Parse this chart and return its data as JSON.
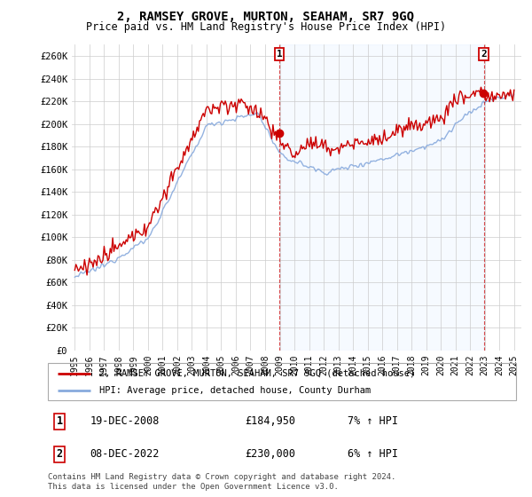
{
  "title": "2, RAMSEY GROVE, MURTON, SEAHAM, SR7 9GQ",
  "subtitle": "Price paid vs. HM Land Registry's House Price Index (HPI)",
  "legend_line1": "2, RAMSEY GROVE, MURTON, SEAHAM, SR7 9GQ (detached house)",
  "legend_line2": "HPI: Average price, detached house, County Durham",
  "transaction1_date": "19-DEC-2008",
  "transaction1_price": "£184,950",
  "transaction1_hpi": "7% ↑ HPI",
  "transaction2_date": "08-DEC-2022",
  "transaction2_price": "£230,000",
  "transaction2_hpi": "6% ↑ HPI",
  "footnote": "Contains HM Land Registry data © Crown copyright and database right 2024.\nThis data is licensed under the Open Government Licence v3.0.",
  "ylim": [
    0,
    270000
  ],
  "yticks": [
    0,
    20000,
    40000,
    60000,
    80000,
    100000,
    120000,
    140000,
    160000,
    180000,
    200000,
    220000,
    240000,
    260000
  ],
  "ytick_labels": [
    "£0",
    "£20K",
    "£40K",
    "£60K",
    "£80K",
    "£100K",
    "£120K",
    "£140K",
    "£160K",
    "£180K",
    "£200K",
    "£220K",
    "£240K",
    "£260K"
  ],
  "red_color": "#cc0000",
  "blue_color": "#88aadd",
  "blue_fill": "#ddeeff",
  "bg_color": "#ffffff",
  "grid_color": "#cccccc",
  "transaction1_x": 2008.97,
  "transaction1_y": 184950,
  "transaction2_x": 2022.93,
  "transaction2_y": 230000,
  "xlim_left": 1994.8,
  "xlim_right": 2025.5
}
